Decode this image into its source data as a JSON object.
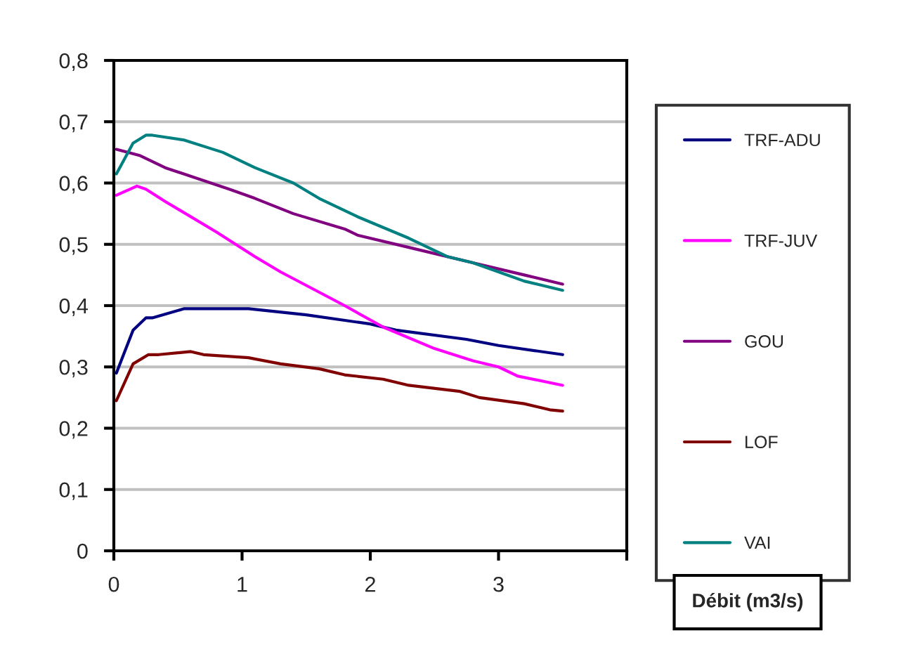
{
  "chart_data": {
    "type": "line",
    "xlabel": "Débit (m3/s)",
    "series": [
      {
        "name": "TRF-ADU",
        "color": "#000080",
        "x": [
          0.02,
          0.15,
          0.25,
          0.3,
          0.55,
          1.05,
          1.5,
          2,
          2.2,
          2.75,
          3,
          3.5
        ],
        "values": [
          0.29,
          0.36,
          0.38,
          0.38,
          0.395,
          0.395,
          0.385,
          0.37,
          0.36,
          0.345,
          0.335,
          0.32
        ]
      },
      {
        "name": "TRF-JUV",
        "color": "#ff00ff",
        "x": [
          0.02,
          0.18,
          0.25,
          0.4,
          0.8,
          1.1,
          1.3,
          1.8,
          2.1,
          2.5,
          2.8,
          3.0,
          3.15,
          3.5
        ],
        "values": [
          0.58,
          0.595,
          0.59,
          0.57,
          0.52,
          0.48,
          0.455,
          0.4,
          0.365,
          0.33,
          0.31,
          0.3,
          0.285,
          0.27
        ]
      },
      {
        "name": "GOU",
        "color": "#800080",
        "x": [
          0.02,
          0.2,
          0.4,
          0.9,
          1.1,
          1.4,
          1.8,
          1.9,
          2.3,
          2.8,
          3.2,
          3.5
        ],
        "values": [
          0.655,
          0.645,
          0.625,
          0.59,
          0.575,
          0.55,
          0.525,
          0.515,
          0.495,
          0.47,
          0.45,
          0.435
        ]
      },
      {
        "name": "LOF",
        "color": "#800000",
        "x": [
          0.02,
          0.15,
          0.27,
          0.35,
          0.6,
          0.7,
          1.05,
          1.3,
          1.6,
          1.8,
          2.1,
          2.3,
          2.7,
          2.85,
          3.2,
          3.4,
          3.5
        ],
        "values": [
          0.245,
          0.305,
          0.32,
          0.32,
          0.325,
          0.32,
          0.315,
          0.305,
          0.297,
          0.287,
          0.28,
          0.27,
          0.26,
          0.25,
          0.24,
          0.23,
          0.228
        ]
      },
      {
        "name": "VAI",
        "color": "#008080",
        "x": [
          0.02,
          0.15,
          0.25,
          0.3,
          0.55,
          0.85,
          1.1,
          1.4,
          1.6,
          1.9,
          2.3,
          2.6,
          2.8,
          3.0,
          3.2,
          3.5
        ],
        "values": [
          0.615,
          0.665,
          0.678,
          0.678,
          0.67,
          0.65,
          0.625,
          0.6,
          0.575,
          0.545,
          0.51,
          0.48,
          0.47,
          0.455,
          0.44,
          0.425
        ]
      }
    ],
    "xlim": [
      0,
      4
    ],
    "xticks": [
      0,
      1,
      2,
      3,
      {
        "value": 4,
        "label": null
      }
    ],
    "ylim": [
      0,
      0.8
    ],
    "yticks": [
      {
        "value": 0,
        "label": "0"
      },
      {
        "value": 0.1,
        "label": "0,1"
      },
      {
        "value": 0.2,
        "label": "0,2"
      },
      {
        "value": 0.3,
        "label": "0,3"
      },
      {
        "value": 0.4,
        "label": "0,4"
      },
      {
        "value": 0.5,
        "label": "0,5"
      },
      {
        "value": 0.6,
        "label": "0,6"
      },
      {
        "value": 0.7,
        "label": "0,7"
      },
      {
        "value": 0.8,
        "label": "0,8"
      }
    ],
    "grid": "y",
    "legend": "right",
    "marker": "none",
    "line_style": "solid"
  }
}
